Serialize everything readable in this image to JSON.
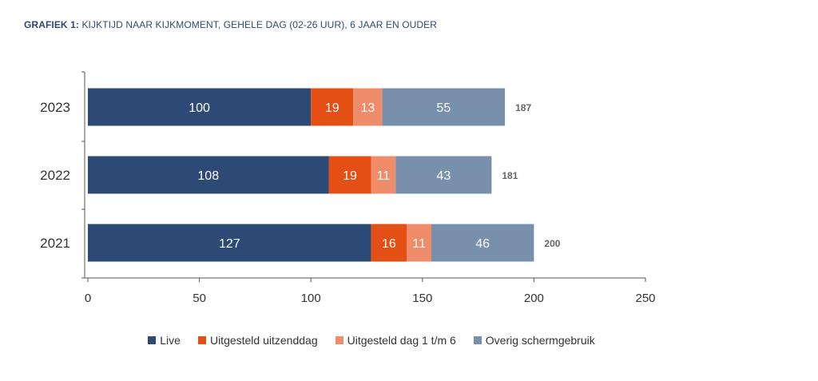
{
  "header": {
    "title_prefix": "GRAFIEK 1:",
    "title_text": "KIJKTIJD NAAR KIJKMOMENT, GEHELE DAG (02-26 UUR), 6 JAAR EN OUDER"
  },
  "chart_data": {
    "type": "bar",
    "orientation": "horizontal",
    "stacked": true,
    "title": "GRAFIEK 1: KIJKTIJD NAAR KIJKMOMENT, GEHELE DAG (02-26 UUR), 6 JAAR EN OUDER",
    "categories": [
      "2023",
      "2022",
      "2021"
    ],
    "series": [
      {
        "name": "Live",
        "color": "#2d4a76",
        "values": [
          100,
          108,
          127
        ]
      },
      {
        "name": "Uitgesteld uitzenddag",
        "color": "#e34f15",
        "values": [
          19,
          19,
          16
        ]
      },
      {
        "name": "Uitgesteld dag 1 t/m 6",
        "color": "#ef8c6a",
        "values": [
          13,
          11,
          11
        ]
      },
      {
        "name": "Overig schermgebruik",
        "color": "#7890ab",
        "values": [
          55,
          43,
          46
        ]
      }
    ],
    "totals": [
      187,
      181,
      200
    ],
    "xlim": [
      0,
      250
    ],
    "xticks": [
      0,
      50,
      100,
      150,
      200,
      250
    ],
    "legend_position": "bottom",
    "grid": false
  }
}
